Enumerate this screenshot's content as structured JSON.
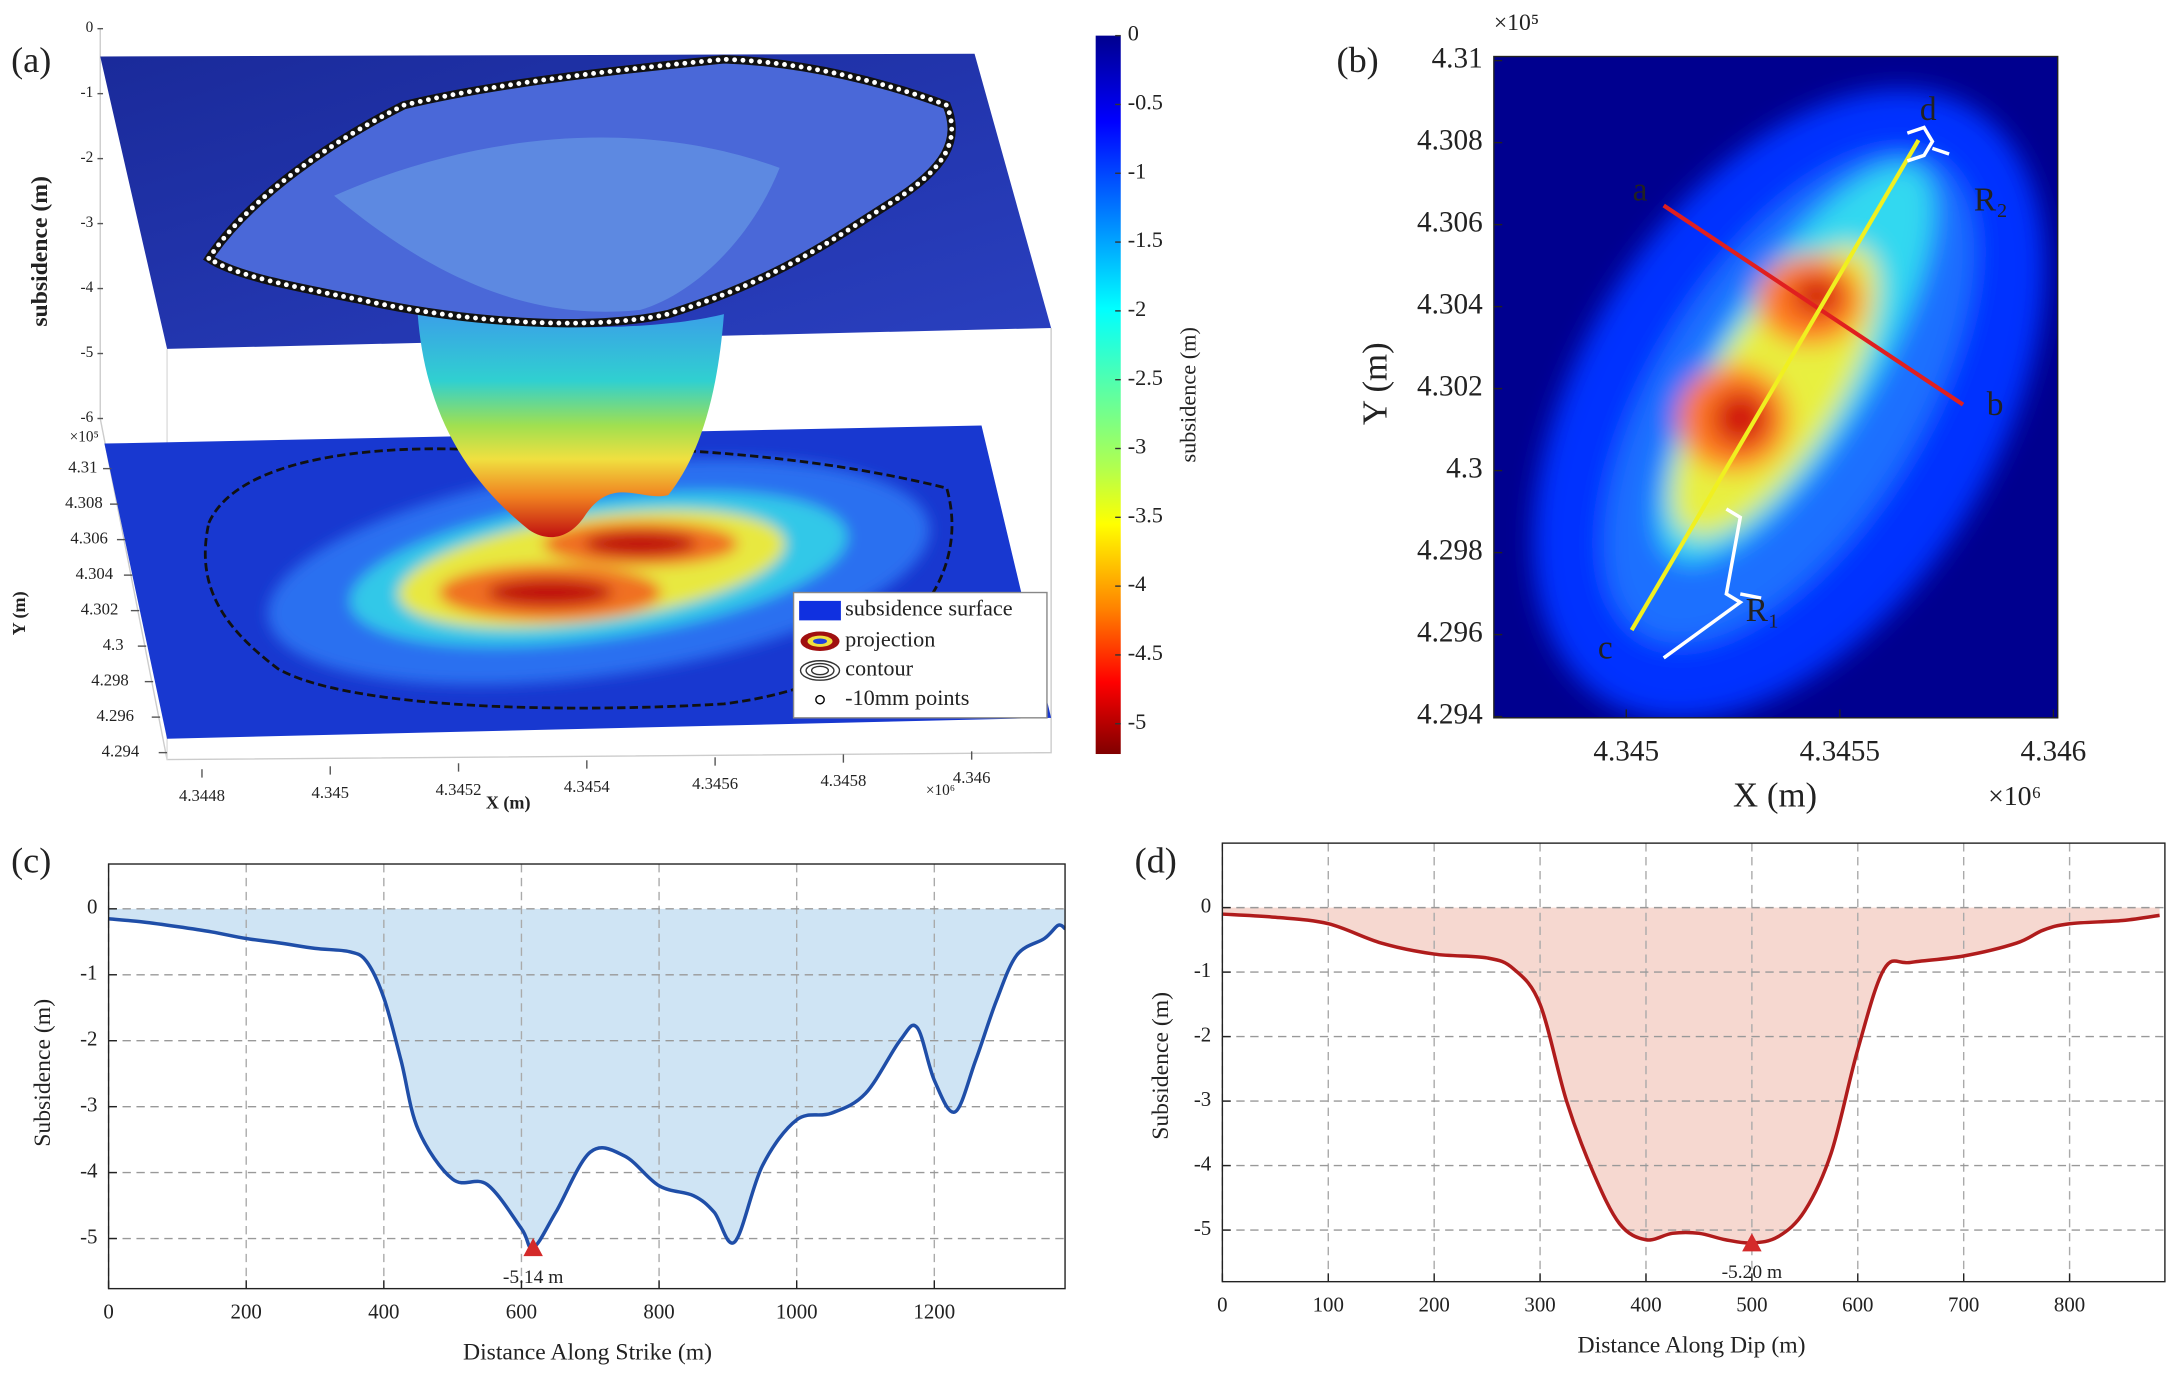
{
  "chart_data": [
    {
      "type": "surface3d",
      "panel_label": "(a)",
      "z_label": "subsidence (m)",
      "x_label": "X (m)",
      "y_label": "Y (m)",
      "x_scale": "×10⁶",
      "y_scale": "×10⁵",
      "zlim": [
        -6,
        0
      ],
      "zticks": [
        0,
        -1,
        -2,
        -3,
        -4,
        -5,
        -6
      ],
      "xlim": [
        4.3447,
        4.3461
      ],
      "xticks": [
        4.3448,
        4.345,
        4.3452,
        4.3454,
        4.3456,
        4.3458,
        4.346
      ],
      "ylim": [
        4.294,
        4.31
      ],
      "yticks": [
        4.294,
        4.296,
        4.298,
        4.3,
        4.302,
        4.304,
        4.306,
        4.308,
        4.31
      ],
      "colorbar": {
        "label": "subsidence (m)",
        "lim": [
          0,
          -5.22
        ],
        "ticks": [
          0,
          -0.5,
          -1,
          -1.5,
          -2,
          -2.5,
          -3,
          -3.5,
          -4,
          -4.5,
          -5
        ]
      },
      "legend": [
        "subsidence surface",
        "projection",
        "contour",
        "-10mm points"
      ]
    },
    {
      "type": "heatmap",
      "panel_label": "(b)",
      "x_label": "X (m)",
      "y_label": "Y (m)",
      "x_scale": "×10⁶",
      "y_scale": "×10⁵",
      "xlim": [
        4.34469,
        4.34601
      ],
      "xticks": [
        4.345,
        4.3455,
        4.346
      ],
      "ylim": [
        4.29397,
        4.3101
      ],
      "yticks": [
        4.294,
        4.296,
        4.298,
        4.3,
        4.302,
        4.304,
        4.306,
        4.308,
        4.31
      ],
      "annotations": [
        "a",
        "b",
        "c",
        "d",
        "R₁",
        "R₂"
      ]
    },
    {
      "type": "area",
      "panel_label": "(c)",
      "x_label": "Distance Along Strike (m)",
      "y_label": "Subsidence (m)",
      "color": "#1f4ea8",
      "fill_color": "#cfe4f4",
      "grid": true,
      "xlim": [
        0,
        1390
      ],
      "xticks": [
        0,
        200,
        400,
        600,
        800,
        1000,
        1200
      ],
      "ylim": [
        -5.76,
        0.68
      ],
      "yticks": [
        0,
        -1,
        -2,
        -3,
        -4,
        -5
      ],
      "x": [
        0,
        50,
        100,
        150,
        200,
        250,
        300,
        350,
        375,
        400,
        425,
        450,
        500,
        550,
        600,
        617,
        650,
        700,
        750,
        800,
        850,
        880,
        910,
        950,
        1000,
        1050,
        1100,
        1150,
        1175,
        1200,
        1230,
        1260,
        1290,
        1320,
        1360,
        1380,
        1390
      ],
      "values": [
        -0.15,
        -0.2,
        -0.27,
        -0.35,
        -0.45,
        -0.52,
        -0.6,
        -0.65,
        -0.8,
        -1.35,
        -2.3,
        -3.35,
        -4.1,
        -4.18,
        -4.85,
        -5.14,
        -4.6,
        -3.69,
        -3.75,
        -4.2,
        -4.35,
        -4.6,
        -5.05,
        -3.9,
        -3.2,
        -3.1,
        -2.8,
        -2.0,
        -1.8,
        -2.6,
        -3.08,
        -2.3,
        -1.4,
        -0.7,
        -0.45,
        -0.25,
        -0.3
      ],
      "annotation": {
        "x": 617,
        "y": -5.14,
        "label": "-5.14 m",
        "color": "#d42a2a"
      }
    },
    {
      "type": "area",
      "panel_label": "(d)",
      "x_label": "Distance Along Dip (m)",
      "y_label": "Subsidence (m)",
      "color": "#b01c1c",
      "fill_color": "#f6d8d0",
      "grid": true,
      "xlim": [
        0,
        890
      ],
      "xticks": [
        0,
        100,
        200,
        300,
        400,
        500,
        600,
        700,
        800
      ],
      "ylim": [
        -5.8,
        1.0
      ],
      "yticks": [
        0,
        -1,
        -2,
        -3,
        -4,
        -5
      ],
      "x": [
        0,
        50,
        100,
        150,
        200,
        250,
        275,
        300,
        325,
        350,
        375,
        400,
        425,
        450,
        475,
        500,
        525,
        550,
        575,
        600,
        625,
        650,
        700,
        750,
        775,
        800,
        850,
        885
      ],
      "values": [
        -0.1,
        -0.15,
        -0.25,
        -0.55,
        -0.72,
        -0.78,
        -0.95,
        -1.5,
        -3.0,
        -4.1,
        -4.9,
        -5.15,
        -5.05,
        -5.05,
        -5.15,
        -5.2,
        -5.1,
        -4.7,
        -3.8,
        -2.2,
        -0.95,
        -0.85,
        -0.75,
        -0.55,
        -0.35,
        -0.25,
        -0.2,
        -0.12
      ],
      "annotation": {
        "x": 500,
        "y": -5.2,
        "label": "-5.20 m",
        "color": "#d42a2a"
      }
    }
  ]
}
